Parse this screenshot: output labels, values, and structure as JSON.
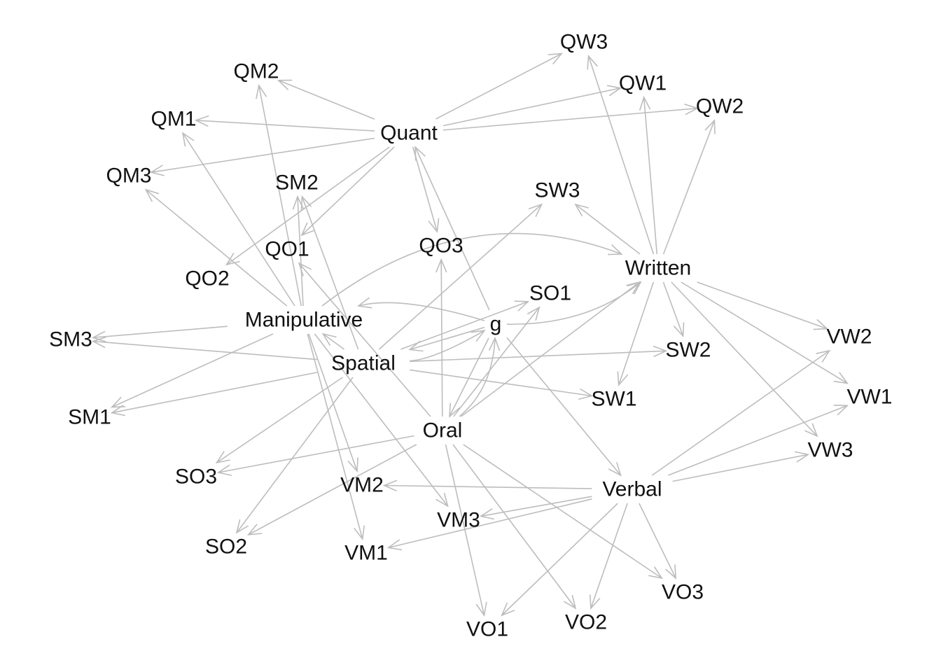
{
  "diagram": {
    "type": "directed-graph",
    "edge_color": "#bdbdbd",
    "text_color": "#111111",
    "nodes": [
      {
        "id": "QW3",
        "label": "QW3"
      },
      {
        "id": "QW1",
        "label": "QW1"
      },
      {
        "id": "QW2",
        "label": "QW2"
      },
      {
        "id": "QM2",
        "label": "QM2"
      },
      {
        "id": "QM1",
        "label": "QM1"
      },
      {
        "id": "QM3",
        "label": "QM3"
      },
      {
        "id": "Quant",
        "label": "Quant"
      },
      {
        "id": "SM2",
        "label": "SM2"
      },
      {
        "id": "SW3",
        "label": "SW3"
      },
      {
        "id": "QO3",
        "label": "QO3"
      },
      {
        "id": "QO1",
        "label": "QO1"
      },
      {
        "id": "QO2",
        "label": "QO2"
      },
      {
        "id": "Written",
        "label": "Written"
      },
      {
        "id": "SO1",
        "label": "SO1"
      },
      {
        "id": "Manipulative",
        "label": "Manipulative"
      },
      {
        "id": "g",
        "label": "g"
      },
      {
        "id": "SM3",
        "label": "SM3"
      },
      {
        "id": "VW2",
        "label": "VW2"
      },
      {
        "id": "Spatial",
        "label": "Spatial"
      },
      {
        "id": "SW2",
        "label": "SW2"
      },
      {
        "id": "VW1",
        "label": "VW1"
      },
      {
        "id": "SW1",
        "label": "SW1"
      },
      {
        "id": "SM1",
        "label": "SM1"
      },
      {
        "id": "Oral",
        "label": "Oral"
      },
      {
        "id": "VW3",
        "label": "VW3"
      },
      {
        "id": "SO3",
        "label": "SO3"
      },
      {
        "id": "VM2",
        "label": "VM2"
      },
      {
        "id": "Verbal",
        "label": "Verbal"
      },
      {
        "id": "VM3",
        "label": "VM3"
      },
      {
        "id": "SO2",
        "label": "SO2"
      },
      {
        "id": "VM1",
        "label": "VM1"
      },
      {
        "id": "VO3",
        "label": "VO3"
      },
      {
        "id": "VO2",
        "label": "VO2"
      },
      {
        "id": "VO1",
        "label": "VO1"
      }
    ],
    "edges": [
      {
        "from": "Quant",
        "to": "QW3"
      },
      {
        "from": "Quant",
        "to": "QW1"
      },
      {
        "from": "Quant",
        "to": "QW2"
      },
      {
        "from": "Quant",
        "to": "QM2"
      },
      {
        "from": "Quant",
        "to": "QM1"
      },
      {
        "from": "Quant",
        "to": "QM3"
      },
      {
        "from": "Quant",
        "to": "QO1"
      },
      {
        "from": "Quant",
        "to": "QO2"
      },
      {
        "from": "Quant",
        "to": "QO3"
      },
      {
        "from": "Manipulative",
        "to": "QM1"
      },
      {
        "from": "Manipulative",
        "to": "QM2"
      },
      {
        "from": "Manipulative",
        "to": "QM3"
      },
      {
        "from": "Manipulative",
        "to": "SM2"
      },
      {
        "from": "Manipulative",
        "to": "SM3"
      },
      {
        "from": "Manipulative",
        "to": "SM1"
      },
      {
        "from": "Manipulative",
        "to": "VM2"
      },
      {
        "from": "Manipulative",
        "to": "VM1"
      },
      {
        "from": "Manipulative",
        "to": "VM3"
      },
      {
        "from": "Written",
        "to": "QW3"
      },
      {
        "from": "Written",
        "to": "QW1"
      },
      {
        "from": "Written",
        "to": "QW2"
      },
      {
        "from": "Written",
        "to": "SW3"
      },
      {
        "from": "Written",
        "to": "SW2"
      },
      {
        "from": "Written",
        "to": "SW1"
      },
      {
        "from": "Written",
        "to": "VW2"
      },
      {
        "from": "Written",
        "to": "VW1"
      },
      {
        "from": "Written",
        "to": "VW3"
      },
      {
        "from": "Spatial",
        "to": "SM2"
      },
      {
        "from": "Spatial",
        "to": "SM3"
      },
      {
        "from": "Spatial",
        "to": "SM1"
      },
      {
        "from": "Spatial",
        "to": "SW3"
      },
      {
        "from": "Spatial",
        "to": "SW2"
      },
      {
        "from": "Spatial",
        "to": "SW1"
      },
      {
        "from": "Spatial",
        "to": "SO1"
      },
      {
        "from": "Spatial",
        "to": "SO3"
      },
      {
        "from": "Spatial",
        "to": "SO2"
      },
      {
        "from": "Oral",
        "to": "QO1"
      },
      {
        "from": "Oral",
        "to": "QO3"
      },
      {
        "from": "Oral",
        "to": "SO1"
      },
      {
        "from": "Oral",
        "to": "SO3"
      },
      {
        "from": "Oral",
        "to": "SO2"
      },
      {
        "from": "Oral",
        "to": "VO1"
      },
      {
        "from": "Oral",
        "to": "VO2"
      },
      {
        "from": "Oral",
        "to": "VO3"
      },
      {
        "from": "Verbal",
        "to": "VW2"
      },
      {
        "from": "Verbal",
        "to": "VW1"
      },
      {
        "from": "Verbal",
        "to": "VW3"
      },
      {
        "from": "Verbal",
        "to": "VM2"
      },
      {
        "from": "Verbal",
        "to": "VM1"
      },
      {
        "from": "Verbal",
        "to": "VM3"
      },
      {
        "from": "Verbal",
        "to": "VO1"
      },
      {
        "from": "Verbal",
        "to": "VO2"
      },
      {
        "from": "Verbal",
        "to": "VO3"
      },
      {
        "from": "g",
        "to": "Quant"
      },
      {
        "from": "g",
        "to": "Manipulative"
      },
      {
        "from": "g",
        "to": "Written"
      },
      {
        "from": "g",
        "to": "Spatial"
      },
      {
        "from": "g",
        "to": "Oral"
      },
      {
        "from": "g",
        "to": "Verbal"
      },
      {
        "from": "Manipulative",
        "to": "Written"
      },
      {
        "from": "Spatial",
        "to": "g"
      },
      {
        "from": "Oral",
        "to": "g"
      },
      {
        "from": "Oral",
        "to": "Written"
      },
      {
        "from": "Spatial",
        "to": "Manipulative"
      }
    ]
  }
}
